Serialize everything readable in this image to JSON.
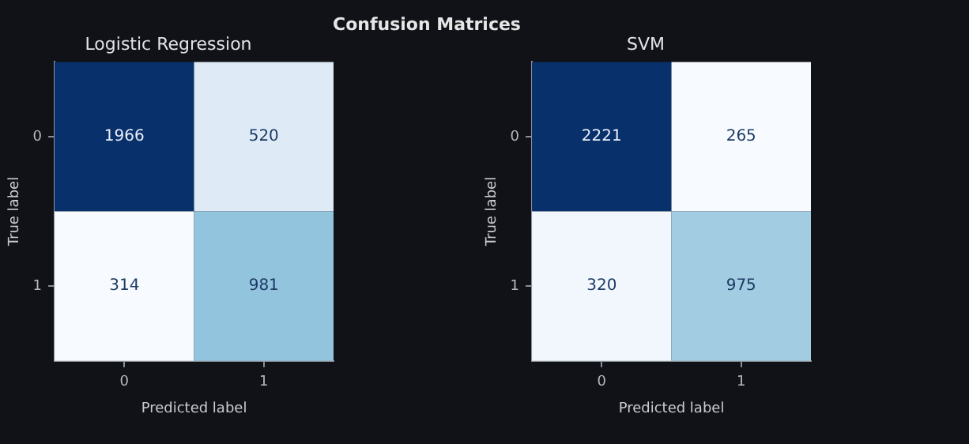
{
  "chart_data": [
    {
      "type": "heatmap",
      "title": "Logistic Regression",
      "annotations": [
        "Confusion Matrices"
      ],
      "xlabel": "Predicted label",
      "ylabel": "True label",
      "categories": [
        "0",
        "1"
      ],
      "y_categories": [
        "0",
        "1"
      ],
      "cells": [
        [
          1966,
          520
        ],
        [
          314,
          981
        ]
      ],
      "data_labels": true,
      "grid": false
    },
    {
      "type": "heatmap",
      "title": "SVM",
      "xlabel": "Predicted label",
      "ylabel": "True label",
      "categories": [
        "0",
        "1"
      ],
      "y_categories": [
        "0",
        "1"
      ],
      "cells": [
        [
          2221,
          265
        ],
        [
          320,
          975
        ]
      ],
      "data_labels": true,
      "grid": false
    }
  ]
}
